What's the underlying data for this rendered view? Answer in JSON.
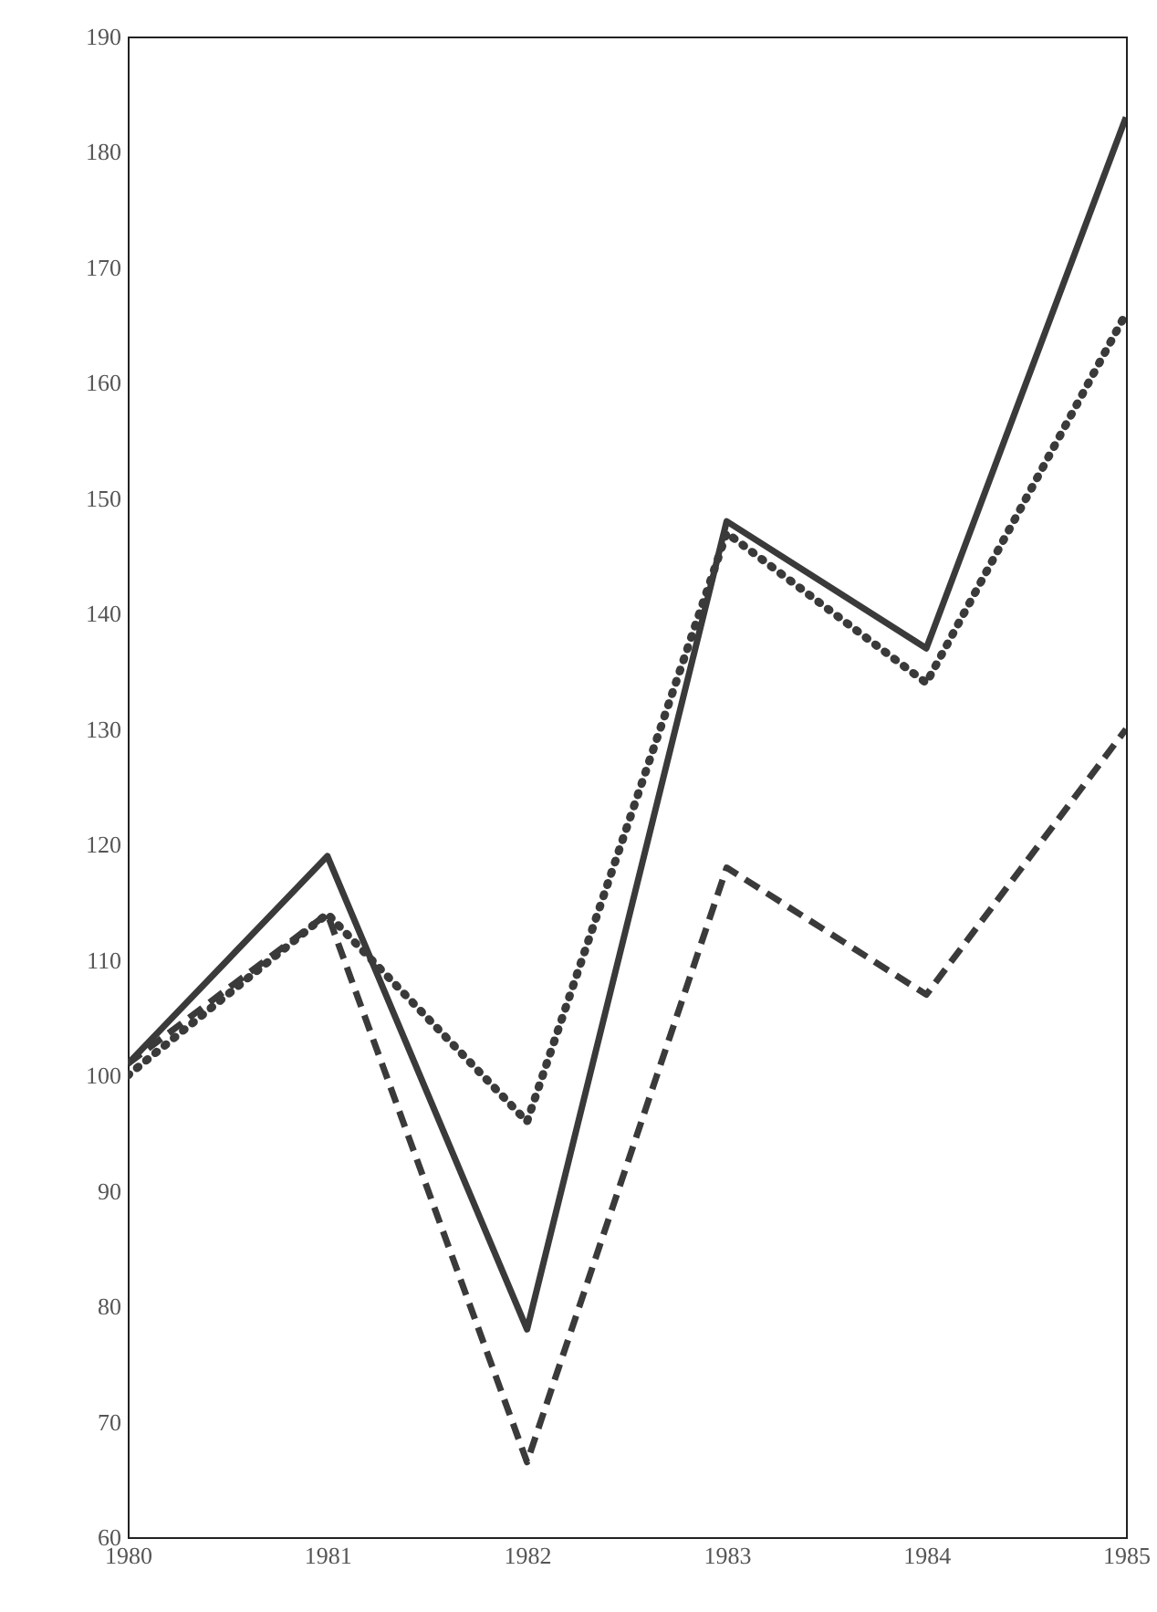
{
  "chart_data": {
    "type": "line",
    "x": [
      1980,
      1981,
      1982,
      1983,
      1984,
      1985
    ],
    "xlim": [
      1980,
      1985
    ],
    "xticks": [
      1980,
      1981,
      1982,
      1983,
      1984,
      1985
    ],
    "ylim": [
      60,
      190
    ],
    "yticks": [
      60,
      70,
      80,
      90,
      100,
      110,
      120,
      130,
      140,
      150,
      160,
      170,
      180,
      190
    ],
    "grid": false,
    "series": [
      {
        "color": "#3a3a3a",
        "line_style": "solid",
        "values": [
          101,
          119,
          78,
          148,
          137,
          183
        ]
      },
      {
        "color": "#3a3a3a",
        "line_style": "dotted",
        "values": [
          100,
          114,
          96,
          147,
          134,
          166
        ]
      },
      {
        "color": "#3a3a3a",
        "line_style": "dashed",
        "values": [
          101,
          114,
          66.5,
          118,
          107,
          130
        ]
      }
    ]
  }
}
